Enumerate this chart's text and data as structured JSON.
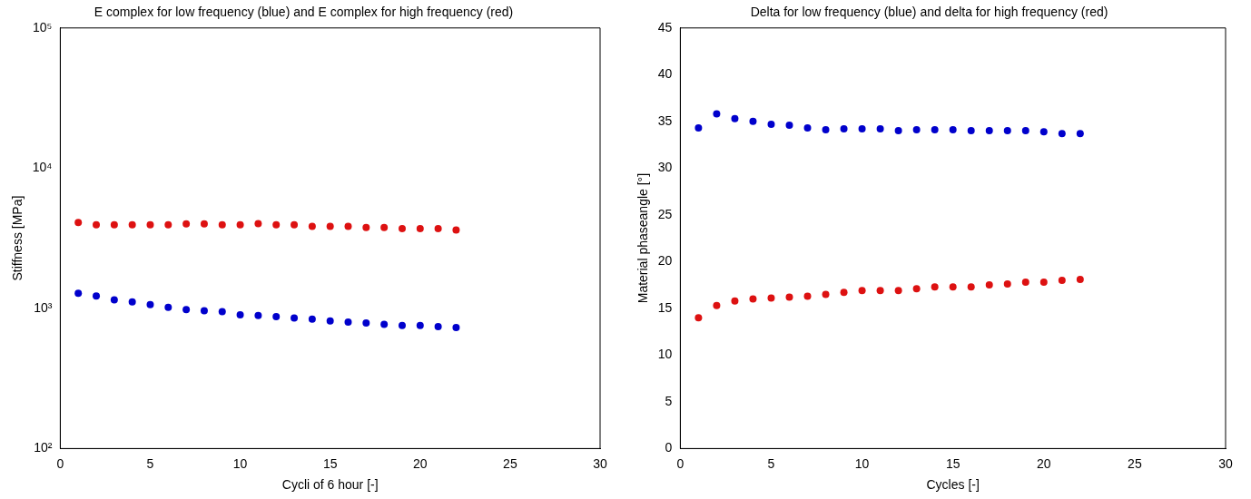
{
  "chart_data": [
    {
      "type": "scatter",
      "title": "E complex for low frequency (blue) and E complex for high frequency (red)",
      "xlabel": "Cycli of 6 hour [-]",
      "ylabel": "Stiffness [MPa]",
      "log": "y",
      "grid": false,
      "legend": false,
      "marker": "circle",
      "x": [
        1,
        2,
        3,
        4,
        5,
        6,
        7,
        8,
        9,
        10,
        11,
        12,
        13,
        14,
        15,
        16,
        17,
        18,
        19,
        20,
        21,
        22
      ],
      "xlim": [
        0,
        30
      ],
      "xticks": [
        0,
        5,
        10,
        15,
        20,
        25,
        30
      ],
      "ylim": [
        100,
        100000
      ],
      "yticks": [
        {
          "value": 100,
          "label": "10²"
        },
        {
          "value": 1000,
          "label": "10³"
        },
        {
          "value": 10000,
          "label": "10⁴"
        },
        {
          "value": 100000,
          "label": "10⁵"
        }
      ],
      "series": [
        {
          "color": "#0000cc",
          "values": [
            1280,
            1225,
            1150,
            1110,
            1065,
            1015,
            980,
            960,
            947,
            900,
            888,
            872,
            854,
            837,
            813,
            798,
            786,
            770,
            755,
            755,
            741,
            730
          ]
        },
        {
          "color": "#dd1111",
          "values": [
            4090,
            3940,
            3940,
            3940,
            3940,
            3940,
            4000,
            4000,
            3940,
            3940,
            4020,
            3940,
            3940,
            3850,
            3850,
            3850,
            3780,
            3780,
            3710,
            3710,
            3710,
            3620
          ]
        }
      ]
    },
    {
      "type": "scatter",
      "title": "Delta for low frequency (blue) and delta for high frequency (red)",
      "xlabel": "Cycles [-]",
      "ylabel": "Material phaseangle [°]",
      "grid": false,
      "legend": false,
      "marker": "circle",
      "x": [
        1,
        2,
        3,
        4,
        5,
        6,
        7,
        8,
        9,
        10,
        11,
        12,
        13,
        14,
        15,
        16,
        17,
        18,
        19,
        20,
        21,
        22
      ],
      "xlim": [
        0,
        30
      ],
      "xticks": [
        0,
        5,
        10,
        15,
        20,
        25,
        30
      ],
      "ylim": [
        0,
        45
      ],
      "yticks": [
        0,
        5,
        10,
        15,
        20,
        25,
        30,
        35,
        40,
        45
      ],
      "series": [
        {
          "color": "#0000cc",
          "values": [
            34.3,
            35.8,
            35.3,
            35.0,
            34.7,
            34.6,
            34.3,
            34.1,
            34.2,
            34.2,
            34.2,
            34.0,
            34.1,
            34.1,
            34.1,
            34.0,
            34.0,
            34.0,
            34.0,
            33.9,
            33.7,
            33.7
          ]
        },
        {
          "color": "#dd1111",
          "values": [
            14.0,
            15.3,
            15.8,
            16.0,
            16.1,
            16.2,
            16.3,
            16.5,
            16.7,
            16.9,
            16.9,
            16.9,
            17.1,
            17.3,
            17.3,
            17.3,
            17.5,
            17.6,
            17.8,
            17.8,
            18.0,
            18.1
          ]
        }
      ]
    }
  ]
}
